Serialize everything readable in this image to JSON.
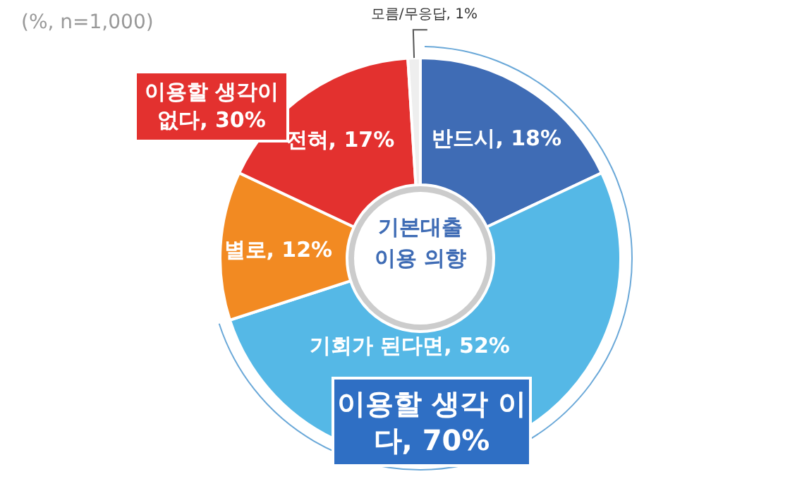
{
  "chart_data": {
    "type": "donut",
    "title": "기본대출 이용 의향",
    "categories": [
      "반드시",
      "기회가 된다면",
      "별로",
      "전혀",
      "모름/무응답"
    ],
    "values": [
      18,
      52,
      12,
      17,
      1
    ],
    "value_labels": [
      "18%",
      "52%",
      "12%",
      "17%",
      "1%"
    ],
    "colors": [
      "#3f6cb5",
      "#55b8e6",
      "#f28a22",
      "#e3312f",
      "#eeeeee"
    ],
    "annotations": [
      "(%, n=1,000)",
      "이용할 생각이 없다, 30%",
      "이용할 생각 이다, 70%"
    ]
  }
}
